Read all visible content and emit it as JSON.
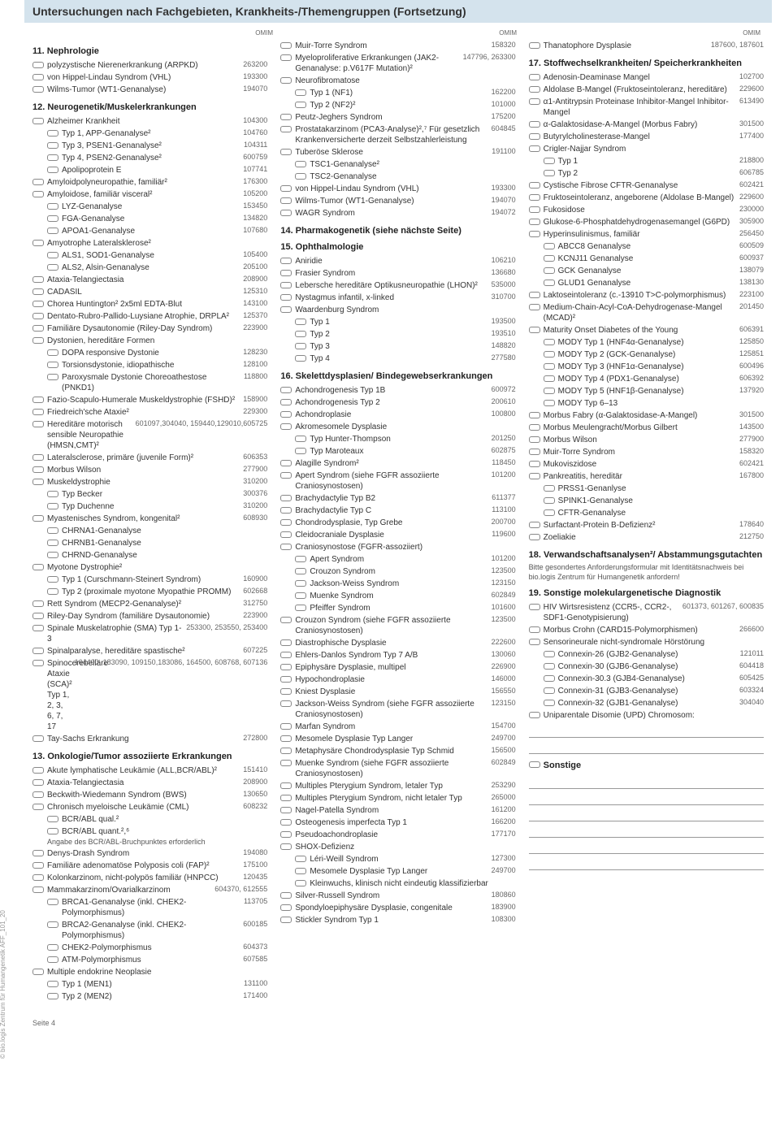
{
  "header": "Untersuchungen nach Fachgebieten, Krankheits-/Themengruppen (Fortsetzung)",
  "omim_label": "OMIM",
  "side_text": "© bio.logis Zentrum für Humangenetik  AFF_101_20",
  "page_number": "Seite 4",
  "col1": {
    "s11": {
      "title": "11. Nephrologie",
      "items": [
        {
          "l": "polyzystische Nierenerkrankung (ARPKD)",
          "c": "263200"
        },
        {
          "l": "von Hippel-Lindau Syndrom (VHL)",
          "c": "193300"
        },
        {
          "l": "Wilms-Tumor (WT1-Genanalyse)",
          "c": "194070"
        }
      ]
    },
    "s12": {
      "title": "12. Neurogenetik/Muskelerkrankungen",
      "items": [
        {
          "l": "Alzheimer Krankheit",
          "c": "104300"
        },
        {
          "l": "Typ 1, APP-Genanalyse²",
          "c": "104760",
          "i": 1
        },
        {
          "l": "Typ 3, PSEN1-Genanalyse²",
          "c": "104311",
          "i": 1
        },
        {
          "l": "Typ 4, PSEN2-Genanalyse²",
          "c": "600759",
          "i": 1
        },
        {
          "l": "Apolipoprotein E",
          "c": "107741",
          "i": 1
        },
        {
          "l": "Amyloidpolyneuropathie, familiär²",
          "c": "176300"
        },
        {
          "l": "Amyloidose, familiär visceral²",
          "c": "105200"
        },
        {
          "l": "LYZ-Genanalyse",
          "c": "153450",
          "i": 1
        },
        {
          "l": "FGA-Genanalyse",
          "c": "134820",
          "i": 1
        },
        {
          "l": "APOA1-Genanalyse",
          "c": "107680",
          "i": 1
        },
        {
          "l": "Amyotrophe Lateralsklerose²",
          "c": ""
        },
        {
          "l": "ALS1, SOD1-Genanalyse",
          "c": "105400",
          "i": 1
        },
        {
          "l": "ALS2, Alsin-Genanalyse",
          "c": "205100",
          "i": 1
        },
        {
          "l": "Ataxia-Telangiectasia",
          "c": "208900"
        },
        {
          "l": "CADASIL",
          "c": "125310"
        },
        {
          "l": "Chorea Huntington² 2x5ml EDTA-Blut",
          "c": "143100"
        },
        {
          "l": "Dentato-Rubro-Pallido-Luysiane Atrophie, DRPLA²",
          "c": "125370"
        },
        {
          "l": "Familiäre Dysautonomie (Riley-Day Syndrom)",
          "c": "223900"
        },
        {
          "l": "Dystonien, hereditäre Formen",
          "c": ""
        },
        {
          "l": "DOPA responsive Dystonie",
          "c": "128230",
          "i": 1
        },
        {
          "l": "Torsionsdystonie, idiopathische",
          "c": "128100",
          "i": 1
        },
        {
          "l": "Paroxysmale Dystonie Choreoathestose (PNKD1)",
          "c": "118800",
          "i": 1
        },
        {
          "l": "Fazio-Scapulo-Humerale Muskeldystrophie (FSHD)²",
          "c": "158900"
        },
        {
          "l": "Friedreich'sche Ataxie²",
          "c": "229300"
        },
        {
          "l": "Hereditäre motorisch sensible Neuropathie (HMSN,CMT)²",
          "c": "601097,304040, 159440,129010,605725"
        },
        {
          "l": "Lateralsclerose, primäre (juvenile Form)²",
          "c": "606353"
        },
        {
          "l": "Morbus Wilson",
          "c": "277900"
        },
        {
          "l": "Muskeldystrophie",
          "c": "310200"
        },
        {
          "l": "Typ Becker",
          "c": "300376",
          "i": 1
        },
        {
          "l": "Typ Duchenne",
          "c": "310200",
          "i": 1
        },
        {
          "l": "Myastenisches Syndrom, kongenital²",
          "c": "608930"
        },
        {
          "l": "CHRNA1-Genanalyse",
          "c": "",
          "i": 1
        },
        {
          "l": "CHRNB1-Genanalyse",
          "c": "",
          "i": 1
        },
        {
          "l": "CHRND-Genanalyse",
          "c": "",
          "i": 1
        },
        {
          "l": "Myotone Dystrophie²",
          "c": ""
        },
        {
          "l": "Typ 1 (Curschmann-Steinert Syndrom)",
          "c": "160900",
          "i": 1
        },
        {
          "l": "Typ 2 (proximale myotone Myopathie PROMM)",
          "c": "602668",
          "i": 1
        },
        {
          "l": "Rett Syndrom (MECP2-Genanalyse)²",
          "c": "312750"
        },
        {
          "l": "Riley-Day Syndrom (familiäre Dysautonomie)",
          "c": "223900"
        },
        {
          "l": "Spinale Muskelatrophie (SMA) Typ 1-3",
          "c": "253300, 253550, 253400"
        },
        {
          "l": "Spinalparalyse, hereditäre spastische²",
          "c": "607225"
        },
        {
          "l": "Spinocerebelläre Ataxie (SCA)² Typ 1, 2, 3, 6, 7, 17",
          "c": "164400, 183090, 109150,183086, 164500, 608768, 607136"
        },
        {
          "l": "Tay-Sachs Erkrankung",
          "c": "272800"
        }
      ]
    },
    "s13": {
      "title": "13. Onkologie/Tumor assoziierte Erkrankungen",
      "items": [
        {
          "l": "Akute lymphatische Leukämie (ALL,BCR/ABL)²",
          "c": "151410"
        },
        {
          "l": "Ataxia-Telangiectasia",
          "c": "208900"
        },
        {
          "l": "Beckwith-Wiedemann Syndrom (BWS)",
          "c": "130650"
        },
        {
          "l": "Chronisch myeloische Leukämie (CML)",
          "c": "608232"
        },
        {
          "l": "BCR/ABL qual.²",
          "c": "",
          "i": 1
        },
        {
          "l": "BCR/ABL quant.²,⁶",
          "c": "",
          "i": 1
        },
        {
          "l": "Angabe des BCR/ABL-Bruchpunktes erforderlich",
          "c": "",
          "note": true
        },
        {
          "l": "Denys-Drash Syndrom",
          "c": "194080"
        },
        {
          "l": "Familiäre adenomatöse Polyposis coli (FAP)²",
          "c": "175100"
        },
        {
          "l": "Kolonkarzinom, nicht-polypös familiär (HNPCC)",
          "c": "120435"
        },
        {
          "l": "Mammakarzinom/Ovarialkarzinom",
          "c": "604370, 612555"
        },
        {
          "l": "BRCA1-Genanalyse (inkl. CHEK2-Polymorphismus)",
          "c": "113705",
          "i": 1
        },
        {
          "l": "BRCA2-Genanalyse (inkl. CHEK2-Polymorphismus)",
          "c": "600185",
          "i": 1
        },
        {
          "l": "CHEK2-Polymorphismus",
          "c": "604373",
          "i": 1
        },
        {
          "l": "ATM-Polymorphismus",
          "c": "607585",
          "i": 1
        },
        {
          "l": "Multiple endokrine Neoplasie",
          "c": ""
        },
        {
          "l": "Typ 1 (MEN1)",
          "c": "131100",
          "i": 1
        },
        {
          "l": "Typ 2 (MEN2)",
          "c": "171400",
          "i": 1
        }
      ]
    }
  },
  "col2": {
    "s13b": {
      "items": [
        {
          "l": "Muir-Torre Syndrom",
          "c": "158320"
        },
        {
          "l": "Myeloproliferative Erkrankungen (JAK2-Genanalyse: p.V617F Mutation)²",
          "c": "147796, 263300"
        },
        {
          "l": "Neurofibromatose",
          "c": ""
        },
        {
          "l": "Typ 1 (NF1)",
          "c": "162200",
          "i": 1
        },
        {
          "l": "Typ 2 (NF2)²",
          "c": "101000",
          "i": 1
        },
        {
          "l": "Peutz-Jeghers Syndrom",
          "c": "175200"
        },
        {
          "l": "Prostatakarzinom (PCA3-Analyse)²,⁷ Für gesetzlich Krankenversicherte derzeit Selbstzahlerleistung",
          "c": "604845"
        },
        {
          "l": "Tuberöse Sklerose",
          "c": "191100"
        },
        {
          "l": "TSC1-Genanalyse²",
          "c": "",
          "i": 1
        },
        {
          "l": "TSC2-Genanalyse",
          "c": "",
          "i": 1
        },
        {
          "l": "von Hippel-Lindau Syndrom (VHL)",
          "c": "193300"
        },
        {
          "l": "Wilms-Tumor (WT1-Genanalyse)",
          "c": "194070"
        },
        {
          "l": "WAGR Syndrom",
          "c": "194072"
        }
      ]
    },
    "s14": {
      "title": "14. Pharmakogenetik (siehe nächste Seite)"
    },
    "s15": {
      "title": "15. Ophthalmologie",
      "items": [
        {
          "l": "Aniridie",
          "c": "106210"
        },
        {
          "l": "Frasier Syndrom",
          "c": "136680"
        },
        {
          "l": "Lebersche hereditäre Optikusneuropathie (LHON)²",
          "c": "535000"
        },
        {
          "l": "Nystagmus infantil, x-linked",
          "c": "310700"
        },
        {
          "l": "Waardenburg Syndrom",
          "c": ""
        },
        {
          "l": "Typ 1",
          "c": "193500",
          "i": 1
        },
        {
          "l": "Typ 2",
          "c": "193510",
          "i": 1
        },
        {
          "l": "Typ 3",
          "c": "148820",
          "i": 1
        },
        {
          "l": "Typ 4",
          "c": "277580",
          "i": 1
        }
      ]
    },
    "s16": {
      "title": "16. Skelettdysplasien/ Bindegewebserkrankungen",
      "items": [
        {
          "l": "Achondrogenesis Typ 1B",
          "c": "600972"
        },
        {
          "l": "Achondrogenesis Typ 2",
          "c": "200610"
        },
        {
          "l": "Achondroplasie",
          "c": "100800"
        },
        {
          "l": "Akromesomele Dysplasie",
          "c": ""
        },
        {
          "l": "Typ Hunter-Thompson",
          "c": "201250",
          "i": 1
        },
        {
          "l": "Typ Maroteaux",
          "c": "602875",
          "i": 1
        },
        {
          "l": "Alagille Syndrom²",
          "c": "118450"
        },
        {
          "l": "Apert Syndrom (siehe FGFR assoziierte Craniosynostosen)",
          "c": "101200"
        },
        {
          "l": "Brachydactylie Typ B2",
          "c": "611377"
        },
        {
          "l": "Brachydactylie Typ C",
          "c": "113100"
        },
        {
          "l": "Chondrodysplasie, Typ Grebe",
          "c": "200700"
        },
        {
          "l": "Cleidocraniale Dysplasie",
          "c": "119600"
        },
        {
          "l": "Craniosynostose (FGFR-assoziiert)",
          "c": ""
        },
        {
          "l": "Apert Syndrom",
          "c": "101200",
          "i": 1
        },
        {
          "l": "Crouzon Syndrom",
          "c": "123500",
          "i": 1
        },
        {
          "l": "Jackson-Weiss Syndrom",
          "c": "123150",
          "i": 1
        },
        {
          "l": "Muenke Syndrom",
          "c": "602849",
          "i": 1
        },
        {
          "l": "Pfeiffer Syndrom",
          "c": "101600",
          "i": 1
        },
        {
          "l": "Crouzon Syndrom (siehe FGFR assoziierte Craniosynostosen)",
          "c": "123500"
        },
        {
          "l": "Diastrophische Dysplasie",
          "c": "222600"
        },
        {
          "l": "Ehlers-Danlos Syndrom Typ 7 A/B",
          "c": "130060"
        },
        {
          "l": "Epiphysäre Dysplasie, multipel",
          "c": "226900"
        },
        {
          "l": "Hypochondroplasie",
          "c": "146000"
        },
        {
          "l": "Kniest Dysplasie",
          "c": "156550"
        },
        {
          "l": "Jackson-Weiss Syndrom (siehe FGFR assoziierte Craniosynostosen)",
          "c": "123150"
        },
        {
          "l": "Marfan Syndrom",
          "c": "154700"
        },
        {
          "l": "Mesomele Dysplasie Typ Langer",
          "c": "249700"
        },
        {
          "l": "Metaphysäre Chondrodysplasie Typ Schmid",
          "c": "156500"
        },
        {
          "l": "Muenke Syndrom (siehe FGFR assoziierte Craniosynostosen)",
          "c": "602849"
        },
        {
          "l": "Multiples Pterygium Syndrom, letaler Typ",
          "c": "253290"
        },
        {
          "l": "Multiples Pterygium Syndrom, nicht letaler Typ",
          "c": "265000"
        },
        {
          "l": "Nagel-Patella Syndrom",
          "c": "161200"
        },
        {
          "l": "Osteogenesis imperfecta Typ 1",
          "c": "166200"
        },
        {
          "l": "Pseudoachondroplasie",
          "c": "177170"
        },
        {
          "l": "SHOX-Defizienz",
          "c": ""
        },
        {
          "l": "Léri-Weill Syndrom",
          "c": "127300",
          "i": 1
        },
        {
          "l": "Mesomele Dysplasie Typ Langer",
          "c": "249700",
          "i": 1
        },
        {
          "l": "Kleinwuchs, klinisch nicht eindeutig klassifizierbar",
          "c": "",
          "i": 1
        },
        {
          "l": "Silver-Russell Syndrom",
          "c": "180860"
        },
        {
          "l": "Spondyloepiphysäre Dysplasie, congenitale",
          "c": "183900"
        },
        {
          "l": "Stickler Syndrom Typ 1",
          "c": "108300"
        }
      ]
    }
  },
  "col3": {
    "s16b": {
      "items": [
        {
          "l": "Thanatophore Dysplasie",
          "c": "187600, 187601"
        }
      ]
    },
    "s17": {
      "title": "17. Stoffwechselkrankheiten/ Speicherkrankheiten",
      "items": [
        {
          "l": "Adenosin-Deaminase Mangel",
          "c": "102700"
        },
        {
          "l": "Aldolase B-Mangel (Fruktoseintoleranz, hereditäre)",
          "c": "229600"
        },
        {
          "l": "α1-Antitrypsin Proteinase Inhibitor-Mangel Inhibitor-Mangel",
          "c": "613490"
        },
        {
          "l": "α-Galaktosidase-A-Mangel (Morbus Fabry)",
          "c": "301500"
        },
        {
          "l": "Butyrylcholinesterase-Mangel",
          "c": "177400"
        },
        {
          "l": "Crigler-Najjar Syndrom",
          "c": ""
        },
        {
          "l": "Typ 1",
          "c": "218800",
          "i": 1
        },
        {
          "l": "Typ 2",
          "c": "606785",
          "i": 1
        },
        {
          "l": "Cystische Fibrose CFTR-Genanalyse",
          "c": "602421"
        },
        {
          "l": "Fruktoseintoleranz, angeborene (Aldolase B-Mangel)",
          "c": "229600"
        },
        {
          "l": "Fukosidose",
          "c": "230000"
        },
        {
          "l": "Glukose-6-Phosphatdehydrogenasemangel (G6PD)",
          "c": "305900"
        },
        {
          "l": "Hyperinsulinismus, familiär",
          "c": "256450"
        },
        {
          "l": "ABCC8 Genanalyse",
          "c": "600509",
          "i": 1
        },
        {
          "l": "KCNJ11 Genanalyse",
          "c": "600937",
          "i": 1
        },
        {
          "l": "GCK Genanalyse",
          "c": "138079",
          "i": 1
        },
        {
          "l": "GLUD1 Genanalyse",
          "c": "138130",
          "i": 1
        },
        {
          "l": "Laktoseintoleranz (c.-13910 T>C-polymorphismus)",
          "c": "223100"
        },
        {
          "l": "Medium-Chain-Acyl-CoA-Dehydrogenase-Mangel (MCAD)²",
          "c": "201450"
        },
        {
          "l": "Maturity Onset Diabetes of the Young",
          "c": "606391"
        },
        {
          "l": "MODY Typ 1 (HNF4α-Genanalyse)",
          "c": "125850",
          "i": 1
        },
        {
          "l": "MODY Typ 2 (GCK-Genanalyse)",
          "c": "125851",
          "i": 1
        },
        {
          "l": "MODY Typ 3 (HNF1α-Genanalyse)",
          "c": "600496",
          "i": 1
        },
        {
          "l": "MODY Typ 4 (PDX1-Genanalyse)",
          "c": "606392",
          "i": 1
        },
        {
          "l": "MODY Typ 5 (HNF1β-Genanalyse)",
          "c": "137920",
          "i": 1
        },
        {
          "l": "MODY Typ 6–13",
          "c": "",
          "i": 1
        },
        {
          "l": "Morbus Fabry (α-Galaktosidase-A-Mangel)",
          "c": "301500"
        },
        {
          "l": "Morbus Meulengracht/Morbus Gilbert",
          "c": "143500"
        },
        {
          "l": "Morbus Wilson",
          "c": "277900"
        },
        {
          "l": "Muir-Torre Syndrom",
          "c": "158320"
        },
        {
          "l": "Mukoviszidose",
          "c": "602421"
        },
        {
          "l": "Pankreatitis, hereditär",
          "c": "167800"
        },
        {
          "l": "PRSS1-Genanlyse",
          "c": "",
          "i": 1
        },
        {
          "l": "SPINK1-Genanalyse",
          "c": "",
          "i": 1
        },
        {
          "l": "CFTR-Genanalyse",
          "c": "",
          "i": 1
        },
        {
          "l": "Surfactant-Protein B-Defizienz²",
          "c": "178640"
        },
        {
          "l": "Zoeliakie",
          "c": "212750"
        }
      ]
    },
    "s18": {
      "title": "18. Verwandschaftsanalysen²/ Abstammungsgutachten",
      "note": "Bitte gesondertes Anforderungsformular mit Identitätsnachweis bei bio.logis Zentrum für Humangenetik anfordern!"
    },
    "s19": {
      "title": "19. Sonstige molekulargenetische Diagnostik",
      "items": [
        {
          "l": "HIV Wirtsresistenz (CCR5-, CCR2-, SDF1-Genotypisierung)",
          "c": "601373, 601267, 600835"
        },
        {
          "l": "Morbus Crohn (CARD15-Polymorphismen)",
          "c": "266600"
        },
        {
          "l": "Sensorineurale nicht-syndromale Hörstörung",
          "c": ""
        },
        {
          "l": "Connexin-26 (GJB2-Genanalyse)",
          "c": "121011",
          "i": 1
        },
        {
          "l": "Connexin-30 (GJB6-Genanalyse)",
          "c": "604418",
          "i": 1
        },
        {
          "l": "Connexin-30.3 (GJB4-Genanalyse)",
          "c": "605425",
          "i": 1
        },
        {
          "l": "Connexin-31 (GJB3-Genanalyse)",
          "c": "603324",
          "i": 1
        },
        {
          "l": "Connexin-32 (GJB1-Genanalyse)",
          "c": "304040",
          "i": 1
        },
        {
          "l": "Uniparentale Disomie (UPD) Chromosom:",
          "c": ""
        }
      ]
    },
    "sonstige": {
      "title": "Sonstige"
    }
  }
}
